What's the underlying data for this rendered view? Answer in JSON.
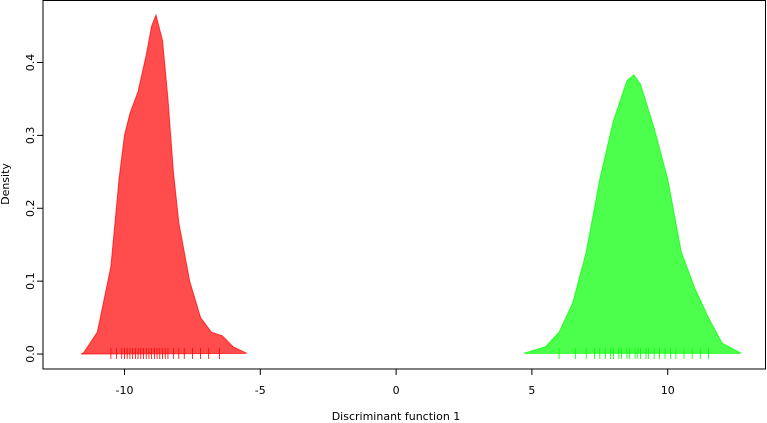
{
  "chart_data": {
    "type": "density",
    "xlabel": "Discriminant function 1",
    "ylabel": "Density",
    "xlim": [
      -13.0,
      13.6
    ],
    "ylim": [
      -0.0205,
      0.485
    ],
    "xticks": [
      -10,
      -5,
      0,
      5,
      10
    ],
    "yticks": [
      {
        "value": 0,
        "label": "0.0"
      },
      0.1,
      0.2,
      0.3,
      0.4
    ],
    "series": [
      {
        "color": "#ff0000",
        "x": [
          -11.6,
          -11.5,
          -11.0,
          -10.5,
          -10.2,
          -10.0,
          -9.8,
          -9.5,
          -9.2,
          -9.0,
          -8.84,
          -8.6,
          -8.4,
          -8.2,
          -8.0,
          -7.6,
          -7.2,
          -6.8,
          -6.4,
          -6.0,
          -5.5
        ],
        "values": [
          0.0,
          0.002,
          0.03,
          0.12,
          0.24,
          0.3,
          0.33,
          0.36,
          0.41,
          0.45,
          0.465,
          0.43,
          0.35,
          0.25,
          0.18,
          0.1,
          0.05,
          0.03,
          0.025,
          0.01,
          0.001
        ],
        "rug": [
          -10.5,
          -10.3,
          -10.1,
          -10.0,
          -9.9,
          -9.8,
          -9.7,
          -9.6,
          -9.5,
          -9.4,
          -9.3,
          -9.2,
          -9.1,
          -9.0,
          -8.9,
          -8.8,
          -8.7,
          -8.6,
          -8.5,
          -8.4,
          -8.2,
          -8.0,
          -7.8,
          -7.5,
          -7.2,
          -6.9,
          -6.5
        ]
      },
      {
        "color": "#00ff00",
        "x": [
          4.7,
          5.5,
          6.0,
          6.5,
          7.0,
          7.5,
          8.0,
          8.5,
          8.75,
          9.0,
          9.5,
          10.0,
          10.5,
          11.0,
          11.5,
          12.0,
          12.7
        ],
        "values": [
          0.001,
          0.01,
          0.03,
          0.07,
          0.14,
          0.24,
          0.32,
          0.375,
          0.383,
          0.37,
          0.31,
          0.24,
          0.14,
          0.09,
          0.05,
          0.015,
          0.001
        ],
        "rug": [
          6.0,
          6.6,
          7.0,
          7.3,
          7.5,
          7.7,
          7.9,
          8.0,
          8.2,
          8.3,
          8.5,
          8.6,
          8.8,
          8.9,
          9.0,
          9.2,
          9.3,
          9.5,
          9.7,
          9.9,
          10.1,
          10.3,
          10.6,
          10.9,
          11.2,
          11.5
        ]
      }
    ]
  }
}
